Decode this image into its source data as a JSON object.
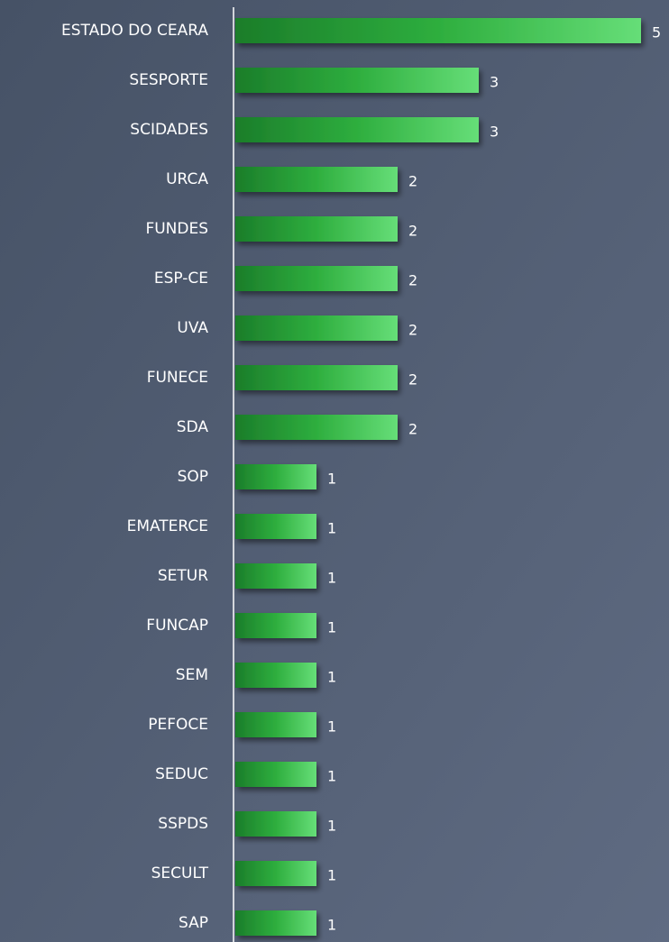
{
  "chart_data": {
    "type": "bar",
    "orientation": "horizontal",
    "categories": [
      "ESTADO DO CEARA",
      "SESPORTE",
      "SCIDADES",
      "URCA",
      "FUNDES",
      "ESP-CE",
      "UVA",
      "FUNECE",
      "SDA",
      "SOP",
      "EMATERCE",
      "SETUR",
      "FUNCAP",
      "SEM",
      "PEFOCE",
      "SEDUC",
      "SSPDS",
      "SECULT",
      "SAP"
    ],
    "values": [
      5,
      3,
      3,
      2,
      2,
      2,
      2,
      2,
      2,
      1,
      1,
      1,
      1,
      1,
      1,
      1,
      1,
      1,
      1
    ],
    "color": "#2eae3e"
  }
}
